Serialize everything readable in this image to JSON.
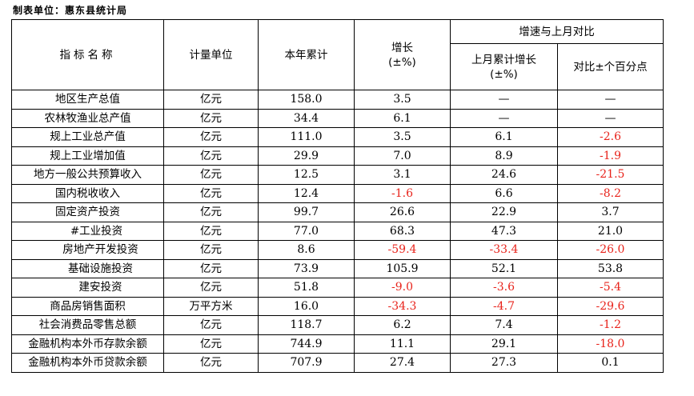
{
  "caption": "制表单位：惠东县统计局",
  "headers": {
    "indicator": "指标名称",
    "unit": "计量单位",
    "ytd": "本年累计",
    "growth": "增长\n(±%)",
    "compare_group": "增速与上月对比",
    "last_month_growth": "上月累计增长\n(±%)",
    "pp_change": "对比±个百分点"
  },
  "colors": {
    "negative": "#e8231b",
    "text": "#000000"
  },
  "rows": [
    {
      "name": "地区生产总值",
      "indent": 0,
      "unit": "亿元",
      "ytd": "158.0",
      "growth": "3.5",
      "last": "—",
      "diff": "—"
    },
    {
      "name": "农林牧渔业总产值",
      "indent": 0,
      "unit": "亿元",
      "ytd": "34.4",
      "growth": "6.1",
      "last": "—",
      "diff": "—"
    },
    {
      "name": "规上工业总产值",
      "indent": 0,
      "unit": "亿元",
      "ytd": "111.0",
      "growth": "3.5",
      "last": "6.1",
      "diff": "-2.6"
    },
    {
      "name": "规上工业增加值",
      "indent": 0,
      "unit": "亿元",
      "ytd": "29.9",
      "growth": "7.0",
      "last": "8.9",
      "diff": "-1.9"
    },
    {
      "name": "地方一般公共预算收入",
      "indent": 0,
      "unit": "亿元",
      "ytd": "12.5",
      "growth": "3.1",
      "last": "24.6",
      "diff": "-21.5"
    },
    {
      "name": "国内税收收入",
      "indent": 0,
      "unit": "亿元",
      "ytd": "12.4",
      "growth": "-1.6",
      "last": "6.6",
      "diff": "-8.2"
    },
    {
      "name": "固定资产投资",
      "indent": 0,
      "unit": "亿元",
      "ytd": "99.7",
      "growth": "26.6",
      "last": "22.9",
      "diff": "3.7"
    },
    {
      "name": "#工业投资",
      "indent": 1,
      "unit": "亿元",
      "ytd": "77.0",
      "growth": "68.3",
      "last": "47.3",
      "diff": "21.0"
    },
    {
      "name": "房地产开发投资",
      "indent": 2,
      "unit": "亿元",
      "ytd": "8.6",
      "growth": "-59.4",
      "last": "-33.4",
      "diff": "-26.0"
    },
    {
      "name": "基础设施投资",
      "indent": 2,
      "unit": "亿元",
      "ytd": "73.9",
      "growth": "105.9",
      "last": "52.1",
      "diff": "53.8"
    },
    {
      "name": "建安投资",
      "indent": 2,
      "unit": "亿元",
      "ytd": "51.8",
      "growth": "-9.0",
      "last": "-3.6",
      "diff": "-5.4"
    },
    {
      "name": "商品房销售面积",
      "indent": 0,
      "unit": "万平方米",
      "ytd": "16.0",
      "growth": "-34.3",
      "last": "-4.7",
      "diff": "-29.6"
    },
    {
      "name": "社会消费品零售总额",
      "indent": 0,
      "unit": "亿元",
      "ytd": "118.7",
      "growth": "6.2",
      "last": "7.4",
      "diff": "-1.2"
    },
    {
      "name": "金融机构本外币存款余额",
      "indent": 0,
      "unit": "亿元",
      "ytd": "744.9",
      "growth": "11.1",
      "last": "29.1",
      "diff": "-18.0"
    },
    {
      "name": "金融机构本外币贷款余额",
      "indent": 0,
      "unit": "亿元",
      "ytd": "707.9",
      "growth": "27.4",
      "last": "27.3",
      "diff": "0.1"
    }
  ]
}
